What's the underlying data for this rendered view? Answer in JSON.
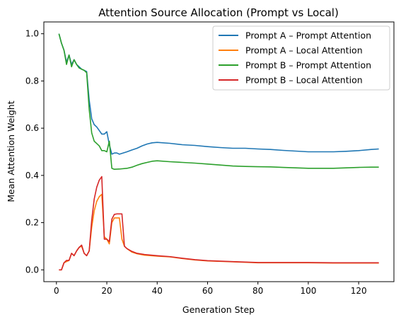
{
  "chart_data": {
    "type": "line",
    "title": "Attention Source Allocation (Prompt vs Local)",
    "xlabel": "Generation Step",
    "ylabel": "Mean Attention Weight",
    "xlim": [
      -5,
      134
    ],
    "ylim": [
      -0.05,
      1.05
    ],
    "xticks": [
      0,
      20,
      40,
      60,
      80,
      100,
      120
    ],
    "yticks": [
      0.0,
      0.2,
      0.4,
      0.6,
      0.8,
      1.0
    ],
    "grid": false,
    "legend_position": "top-right",
    "series": [
      {
        "name": "Prompt A – Prompt Attention",
        "color": "#1f77b4",
        "points": [
          [
            1,
            1.0
          ],
          [
            2,
            0.96
          ],
          [
            3,
            0.93
          ],
          [
            4,
            0.88
          ],
          [
            5,
            0.91
          ],
          [
            6,
            0.87
          ],
          [
            7,
            0.89
          ],
          [
            8,
            0.87
          ],
          [
            9,
            0.86
          ],
          [
            10,
            0.85
          ],
          [
            11,
            0.845
          ],
          [
            12,
            0.84
          ],
          [
            13,
            0.72
          ],
          [
            14,
            0.64
          ],
          [
            15,
            0.615
          ],
          [
            16,
            0.605
          ],
          [
            17,
            0.59
          ],
          [
            18,
            0.575
          ],
          [
            19,
            0.575
          ],
          [
            20,
            0.585
          ],
          [
            21,
            0.53
          ],
          [
            22,
            0.49
          ],
          [
            23,
            0.495
          ],
          [
            24,
            0.495
          ],
          [
            25,
            0.49
          ],
          [
            28,
            0.5
          ],
          [
            30,
            0.508
          ],
          [
            32,
            0.515
          ],
          [
            34,
            0.525
          ],
          [
            36,
            0.533
          ],
          [
            38,
            0.538
          ],
          [
            40,
            0.54
          ],
          [
            45,
            0.536
          ],
          [
            50,
            0.53
          ],
          [
            55,
            0.527
          ],
          [
            60,
            0.522
          ],
          [
            65,
            0.518
          ],
          [
            70,
            0.515
          ],
          [
            75,
            0.515
          ],
          [
            80,
            0.512
          ],
          [
            85,
            0.51
          ],
          [
            90,
            0.506
          ],
          [
            95,
            0.503
          ],
          [
            100,
            0.5
          ],
          [
            105,
            0.5
          ],
          [
            110,
            0.5
          ],
          [
            115,
            0.502
          ],
          [
            120,
            0.505
          ],
          [
            125,
            0.51
          ],
          [
            128,
            0.512
          ]
        ]
      },
      {
        "name": "Prompt A – Local Attention",
        "color": "#ff7f0e",
        "points": [
          [
            1,
            0.0
          ],
          [
            2,
            0.0
          ],
          [
            3,
            0.03
          ],
          [
            4,
            0.035
          ],
          [
            5,
            0.04
          ],
          [
            6,
            0.07
          ],
          [
            7,
            0.06
          ],
          [
            8,
            0.08
          ],
          [
            9,
            0.095
          ],
          [
            10,
            0.1
          ],
          [
            11,
            0.07
          ],
          [
            12,
            0.06
          ],
          [
            13,
            0.08
          ],
          [
            14,
            0.18
          ],
          [
            15,
            0.25
          ],
          [
            16,
            0.29
          ],
          [
            17,
            0.31
          ],
          [
            18,
            0.32
          ],
          [
            19,
            0.14
          ],
          [
            20,
            0.13
          ],
          [
            21,
            0.11
          ],
          [
            22,
            0.2
          ],
          [
            23,
            0.22
          ],
          [
            24,
            0.22
          ],
          [
            25,
            0.22
          ],
          [
            26,
            0.13
          ],
          [
            27,
            0.1
          ],
          [
            28,
            0.09
          ],
          [
            30,
            0.075
          ],
          [
            32,
            0.068
          ],
          [
            35,
            0.062
          ],
          [
            40,
            0.058
          ],
          [
            45,
            0.055
          ],
          [
            50,
            0.048
          ],
          [
            55,
            0.042
          ],
          [
            60,
            0.038
          ],
          [
            70,
            0.034
          ],
          [
            80,
            0.03
          ],
          [
            90,
            0.03
          ],
          [
            100,
            0.03
          ],
          [
            110,
            0.029
          ],
          [
            120,
            0.029
          ],
          [
            128,
            0.029
          ]
        ]
      },
      {
        "name": "Prompt B – Prompt Attention",
        "color": "#2ca02c",
        "points": [
          [
            1,
            1.0
          ],
          [
            2,
            0.96
          ],
          [
            3,
            0.93
          ],
          [
            4,
            0.87
          ],
          [
            5,
            0.91
          ],
          [
            6,
            0.86
          ],
          [
            7,
            0.89
          ],
          [
            8,
            0.87
          ],
          [
            9,
            0.855
          ],
          [
            10,
            0.85
          ],
          [
            11,
            0.845
          ],
          [
            12,
            0.835
          ],
          [
            13,
            0.68
          ],
          [
            14,
            0.58
          ],
          [
            15,
            0.545
          ],
          [
            16,
            0.535
          ],
          [
            17,
            0.525
          ],
          [
            18,
            0.505
          ],
          [
            19,
            0.505
          ],
          [
            20,
            0.5
          ],
          [
            21,
            0.545
          ],
          [
            22,
            0.43
          ],
          [
            23,
            0.426
          ],
          [
            25,
            0.427
          ],
          [
            28,
            0.43
          ],
          [
            30,
            0.435
          ],
          [
            32,
            0.443
          ],
          [
            34,
            0.45
          ],
          [
            36,
            0.455
          ],
          [
            38,
            0.46
          ],
          [
            40,
            0.462
          ],
          [
            45,
            0.458
          ],
          [
            50,
            0.455
          ],
          [
            55,
            0.452
          ],
          [
            60,
            0.448
          ],
          [
            65,
            0.444
          ],
          [
            70,
            0.44
          ],
          [
            75,
            0.438
          ],
          [
            80,
            0.437
          ],
          [
            85,
            0.436
          ],
          [
            90,
            0.434
          ],
          [
            95,
            0.432
          ],
          [
            100,
            0.43
          ],
          [
            105,
            0.43
          ],
          [
            110,
            0.43
          ],
          [
            115,
            0.432
          ],
          [
            120,
            0.434
          ],
          [
            125,
            0.435
          ],
          [
            128,
            0.435
          ]
        ]
      },
      {
        "name": "Prompt B – Local Attention",
        "color": "#d62728",
        "points": [
          [
            1,
            0.0
          ],
          [
            2,
            0.0
          ],
          [
            3,
            0.03
          ],
          [
            4,
            0.04
          ],
          [
            5,
            0.04
          ],
          [
            6,
            0.07
          ],
          [
            7,
            0.06
          ],
          [
            8,
            0.08
          ],
          [
            9,
            0.095
          ],
          [
            10,
            0.105
          ],
          [
            11,
            0.07
          ],
          [
            12,
            0.06
          ],
          [
            13,
            0.08
          ],
          [
            14,
            0.21
          ],
          [
            15,
            0.3
          ],
          [
            16,
            0.35
          ],
          [
            17,
            0.38
          ],
          [
            18,
            0.395
          ],
          [
            19,
            0.13
          ],
          [
            20,
            0.13
          ],
          [
            21,
            0.12
          ],
          [
            22,
            0.215
          ],
          [
            23,
            0.235
          ],
          [
            24,
            0.237
          ],
          [
            25,
            0.237
          ],
          [
            26,
            0.237
          ],
          [
            27,
            0.1
          ],
          [
            28,
            0.09
          ],
          [
            30,
            0.078
          ],
          [
            32,
            0.07
          ],
          [
            35,
            0.065
          ],
          [
            40,
            0.06
          ],
          [
            45,
            0.056
          ],
          [
            50,
            0.049
          ],
          [
            55,
            0.043
          ],
          [
            60,
            0.039
          ],
          [
            70,
            0.035
          ],
          [
            80,
            0.031
          ],
          [
            90,
            0.031
          ],
          [
            100,
            0.031
          ],
          [
            110,
            0.03
          ],
          [
            120,
            0.03
          ],
          [
            128,
            0.03
          ]
        ]
      }
    ]
  }
}
